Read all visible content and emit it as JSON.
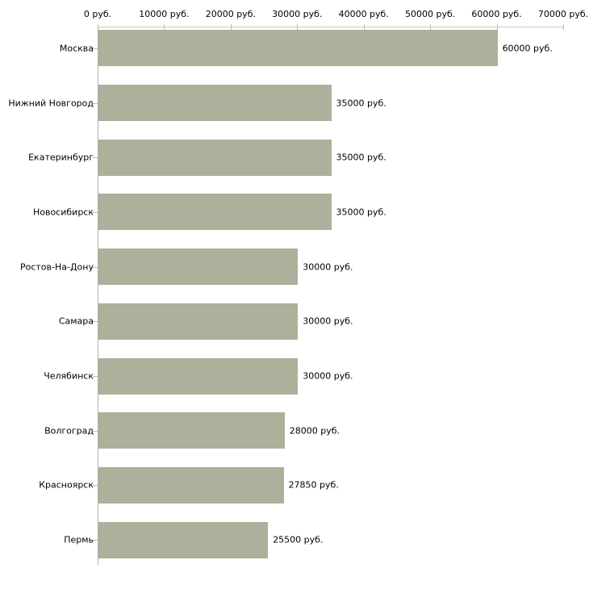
{
  "chart_data": {
    "type": "bar",
    "orientation": "horizontal",
    "title": "",
    "xlabel": "",
    "ylabel": "",
    "grid": false,
    "legend": false,
    "categories": [
      "Москва",
      "Нижний Новгород",
      "Екатеринбург",
      "Новосибирск",
      "Ростов-На-Дону",
      "Самара",
      "Челябинск",
      "Волгоград",
      "Красноярск",
      "Пермь"
    ],
    "values": [
      60000,
      35000,
      35000,
      35000,
      30000,
      30000,
      30000,
      28000,
      27850,
      25500
    ],
    "value_labels": [
      "60000 руб.",
      "35000 руб.",
      "35000 руб.",
      "35000 руб.",
      "30000 руб.",
      "30000 руб.",
      "30000 руб.",
      "28000 руб.",
      "27850 руб.",
      "25500 руб."
    ],
    "x_axis": {
      "position": "top",
      "xlim": [
        0,
        70000
      ],
      "tick_values": [
        0,
        10000,
        20000,
        30000,
        40000,
        50000,
        60000,
        70000
      ],
      "tick_labels": [
        "0 руб.",
        "10000 руб.",
        "20000 руб.",
        "30000 руб.",
        "40000 руб.",
        "50000 руб.",
        "60000 руб.",
        "70000 руб."
      ]
    },
    "colors": {
      "bar": "#abb19a",
      "axis_line": "#c9c9c1",
      "tick": "#c2bc9c",
      "y_axis_line": "#b1b1ab",
      "label_text": "#000000",
      "background": "#ffffff"
    }
  }
}
